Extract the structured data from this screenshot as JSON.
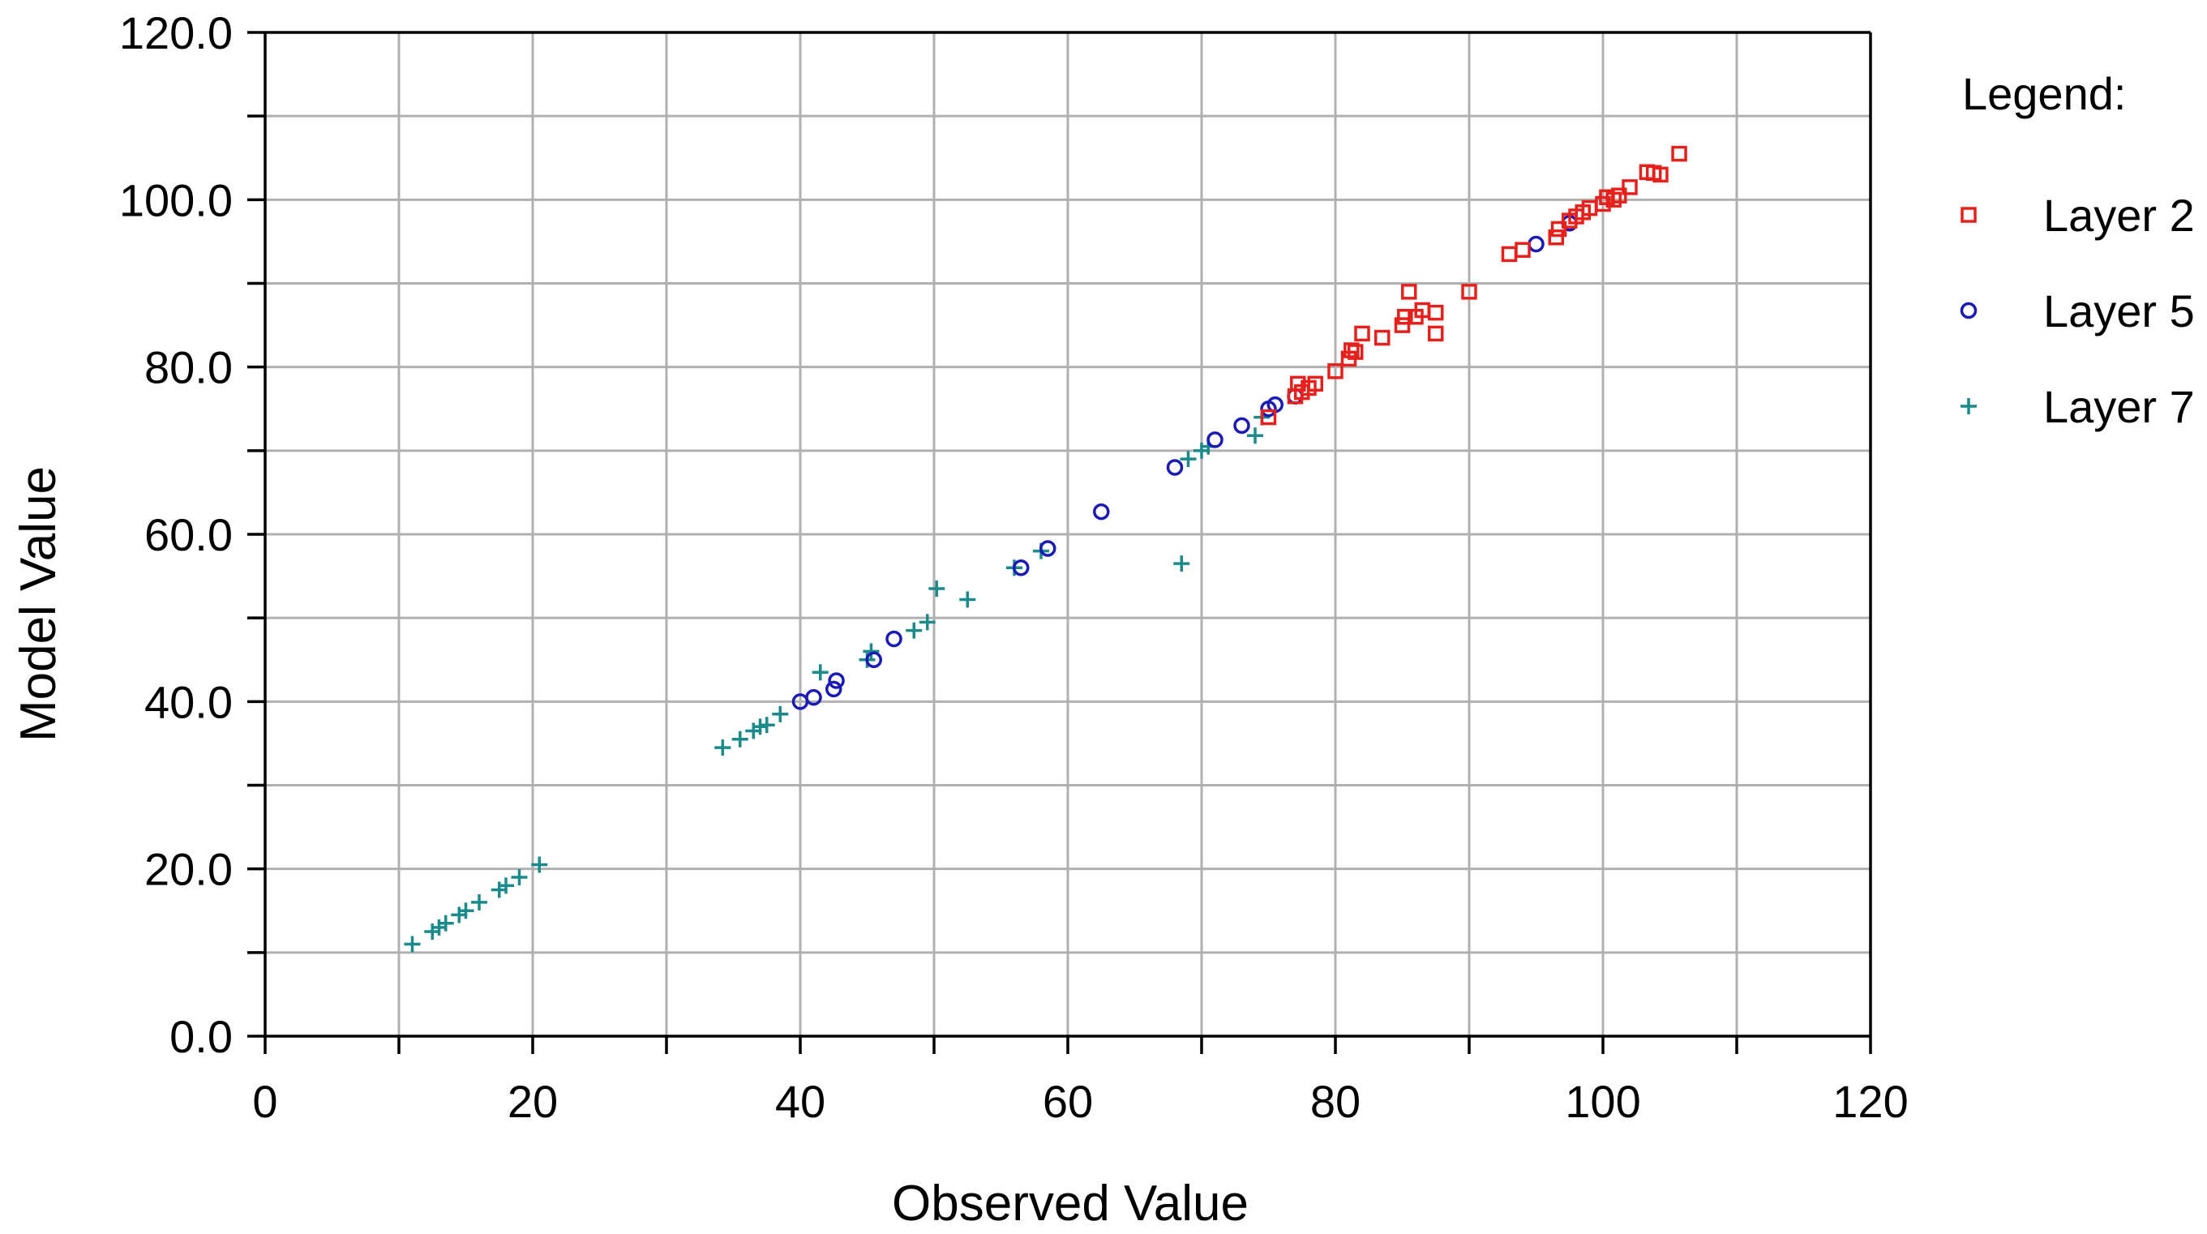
{
  "chart_data": {
    "type": "scatter",
    "title": "",
    "xlabel": "Observed Value",
    "ylabel": "Model Value",
    "xlim": [
      0,
      120
    ],
    "ylim": [
      0,
      120
    ],
    "x_ticks": [
      "0",
      "20",
      "40",
      "60",
      "80",
      "100",
      "120"
    ],
    "y_ticks": [
      "0.0",
      "20.0",
      "40.0",
      "60.0",
      "80.0",
      "100.0",
      "120.0"
    ],
    "grid": true,
    "legend": {
      "title": "Legend:",
      "placement": "right",
      "entries": [
        "Layer 2",
        "Layer 5",
        "Layer 7"
      ]
    },
    "series": [
      {
        "name": "Layer 2",
        "marker": "square",
        "color": "#e8201c",
        "points": [
          [
            75,
            74
          ],
          [
            77,
            76.5
          ],
          [
            77.2,
            78
          ],
          [
            77.5,
            77
          ],
          [
            78,
            77.5
          ],
          [
            78.5,
            78
          ],
          [
            80,
            79.5
          ],
          [
            81,
            81
          ],
          [
            81.2,
            82
          ],
          [
            81.5,
            81.8
          ],
          [
            82,
            84
          ],
          [
            83.5,
            83.5
          ],
          [
            85,
            85
          ],
          [
            85.2,
            86
          ],
          [
            85.5,
            89
          ],
          [
            86,
            86
          ],
          [
            86.5,
            86.8
          ],
          [
            87.5,
            86.5
          ],
          [
            87.5,
            84
          ],
          [
            90,
            89
          ],
          [
            93,
            93.5
          ],
          [
            94,
            94
          ],
          [
            96.5,
            95.5
          ],
          [
            96.7,
            96.5
          ],
          [
            97.5,
            97.5
          ],
          [
            98,
            98
          ],
          [
            98.5,
            98.5
          ],
          [
            99,
            99
          ],
          [
            100,
            99.5
          ],
          [
            100.3,
            100.3
          ],
          [
            100.8,
            100
          ],
          [
            101.2,
            100.5
          ],
          [
            102,
            101.5
          ],
          [
            103.3,
            103.3
          ],
          [
            103.8,
            103.2
          ],
          [
            104.3,
            103
          ],
          [
            105.7,
            105.5
          ]
        ]
      },
      {
        "name": "Layer 5",
        "marker": "circle",
        "color": "#1a1ab8",
        "points": [
          [
            40,
            40
          ],
          [
            41,
            40.5
          ],
          [
            42.5,
            41.5
          ],
          [
            42.7,
            42.5
          ],
          [
            45.5,
            45
          ],
          [
            47,
            47.5
          ],
          [
            56.5,
            56
          ],
          [
            58.5,
            58.3
          ],
          [
            62.5,
            62.7
          ],
          [
            68,
            68
          ],
          [
            71,
            71.3
          ],
          [
            73,
            73
          ],
          [
            75,
            75
          ],
          [
            75.5,
            75.5
          ],
          [
            77,
            76.5
          ],
          [
            95,
            94.7
          ],
          [
            97.5,
            97.2
          ]
        ]
      },
      {
        "name": "Layer 7",
        "marker": "plus",
        "color": "#1a8a8a",
        "points": [
          [
            11,
            11
          ],
          [
            12.5,
            12.5
          ],
          [
            13,
            13
          ],
          [
            13.5,
            13.5
          ],
          [
            14.5,
            14.5
          ],
          [
            15,
            15
          ],
          [
            16,
            16
          ],
          [
            17.5,
            17.5
          ],
          [
            18,
            18
          ],
          [
            19,
            19
          ],
          [
            20.5,
            20.5
          ],
          [
            34.2,
            34.5
          ],
          [
            35.5,
            35.5
          ],
          [
            36.5,
            36.5
          ],
          [
            37,
            37
          ],
          [
            37.5,
            37.2
          ],
          [
            38.5,
            38.5
          ],
          [
            41.5,
            43.5
          ],
          [
            45,
            45
          ],
          [
            45.3,
            46
          ],
          [
            48.5,
            48.5
          ],
          [
            49.5,
            49.5
          ],
          [
            50.2,
            53.5
          ],
          [
            52.5,
            52.2
          ],
          [
            56,
            56
          ],
          [
            58,
            58
          ],
          [
            68.5,
            56.5
          ],
          [
            69,
            69
          ],
          [
            70,
            70
          ],
          [
            70.5,
            70.5
          ],
          [
            74,
            71.8
          ],
          [
            74.5,
            74
          ]
        ]
      }
    ]
  }
}
